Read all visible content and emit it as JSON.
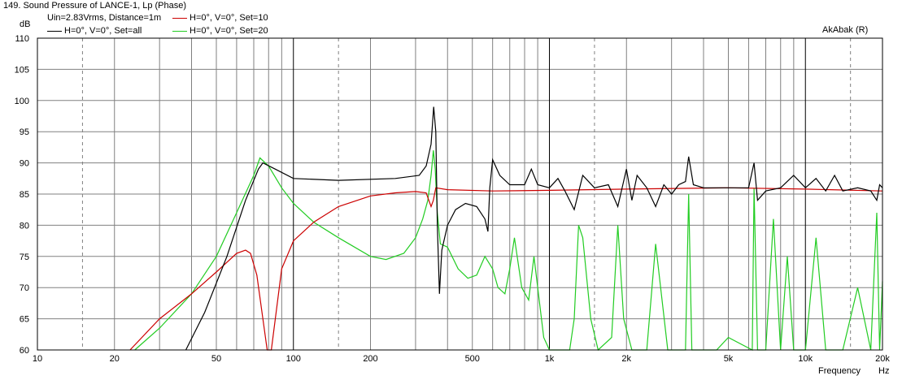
{
  "header": {
    "title": "149. Sound Pressure of LANCE-1, Lp (Phase)",
    "y_unit": "dB",
    "conditions": "Uin=2.83Vrms, Distance=1m",
    "brand": "AkAbak (R)"
  },
  "legend": [
    {
      "label": "H=0°, V=0°, Set=10",
      "color": "#cc0000"
    },
    {
      "label": "H=0°, V=0°, Set=all",
      "color": "#000000"
    },
    {
      "label": "H=0°, V=0°, Set=20",
      "color": "#22cc22"
    }
  ],
  "chart_data": {
    "type": "line",
    "title": "149. Sound Pressure of LANCE-1, Lp (Phase)",
    "xlabel": "Frequency",
    "xunit": "Hz",
    "ylabel": "dB",
    "xscale": "log",
    "xlim": [
      10,
      20000
    ],
    "ylim": [
      60,
      110
    ],
    "grid": true,
    "x_ticks": [
      {
        "value": 10,
        "label": "10"
      },
      {
        "value": 20,
        "label": "20"
      },
      {
        "value": 50,
        "label": "50"
      },
      {
        "value": 100,
        "label": "100"
      },
      {
        "value": 200,
        "label": "200"
      },
      {
        "value": 500,
        "label": "500"
      },
      {
        "value": 1000,
        "label": "1k"
      },
      {
        "value": 2000,
        "label": "2k"
      },
      {
        "value": 5000,
        "label": "5k"
      },
      {
        "value": 10000,
        "label": "10k"
      },
      {
        "value": 20000,
        "label": "20k"
      }
    ],
    "y_ticks": [
      60,
      65,
      70,
      75,
      80,
      85,
      90,
      95,
      100,
      105,
      110
    ],
    "series": [
      {
        "name": "H=0°, V=0°, Set=all",
        "color": "#000000",
        "points": [
          [
            38,
            60
          ],
          [
            45,
            66
          ],
          [
            55,
            75
          ],
          [
            65,
            84
          ],
          [
            73,
            89
          ],
          [
            76,
            90
          ],
          [
            85,
            89
          ],
          [
            100,
            87.5
          ],
          [
            150,
            87.2
          ],
          [
            250,
            87.5
          ],
          [
            310,
            88
          ],
          [
            330,
            89.5
          ],
          [
            345,
            93
          ],
          [
            353,
            99
          ],
          [
            360,
            95
          ],
          [
            365,
            80
          ],
          [
            372,
            69
          ],
          [
            380,
            76
          ],
          [
            400,
            80
          ],
          [
            430,
            82.5
          ],
          [
            470,
            83.5
          ],
          [
            520,
            83
          ],
          [
            560,
            81
          ],
          [
            575,
            79
          ],
          [
            585,
            86
          ],
          [
            600,
            90.5
          ],
          [
            640,
            88
          ],
          [
            700,
            86.5
          ],
          [
            800,
            86.5
          ],
          [
            850,
            89
          ],
          [
            900,
            86.5
          ],
          [
            1000,
            86
          ],
          [
            1080,
            87.5
          ],
          [
            1150,
            85.5
          ],
          [
            1250,
            82.5
          ],
          [
            1350,
            88
          ],
          [
            1500,
            86
          ],
          [
            1700,
            86.5
          ],
          [
            1850,
            83
          ],
          [
            2000,
            89
          ],
          [
            2100,
            84
          ],
          [
            2200,
            88
          ],
          [
            2400,
            86
          ],
          [
            2600,
            83
          ],
          [
            2800,
            86.5
          ],
          [
            3000,
            85
          ],
          [
            3200,
            86.5
          ],
          [
            3400,
            87
          ],
          [
            3500,
            91
          ],
          [
            3650,
            86.5
          ],
          [
            4000,
            86
          ],
          [
            5000,
            86
          ],
          [
            6000,
            86
          ],
          [
            6300,
            90
          ],
          [
            6500,
            84
          ],
          [
            7000,
            85.5
          ],
          [
            8000,
            86
          ],
          [
            9000,
            88
          ],
          [
            10000,
            86
          ],
          [
            11000,
            87.5
          ],
          [
            12000,
            85.5
          ],
          [
            13000,
            88
          ],
          [
            14000,
            85.5
          ],
          [
            16000,
            86
          ],
          [
            18000,
            85.5
          ],
          [
            19000,
            84
          ],
          [
            19500,
            86.5
          ],
          [
            20000,
            86
          ]
        ]
      },
      {
        "name": "H=0°, V=0°, Set=10",
        "color": "#cc0000",
        "points": [
          [
            23,
            60
          ],
          [
            30,
            65
          ],
          [
            40,
            69
          ],
          [
            50,
            72.5
          ],
          [
            60,
            75.5
          ],
          [
            65,
            76
          ],
          [
            68,
            75.5
          ],
          [
            72,
            72
          ],
          [
            76,
            65
          ],
          [
            79,
            60
          ],
          [
            82,
            60
          ],
          [
            85,
            65
          ],
          [
            90,
            73
          ],
          [
            100,
            77.5
          ],
          [
            120,
            80.5
          ],
          [
            150,
            83
          ],
          [
            200,
            84.7
          ],
          [
            250,
            85.2
          ],
          [
            300,
            85.4
          ],
          [
            330,
            85.2
          ],
          [
            345,
            83
          ],
          [
            352,
            84
          ],
          [
            360,
            86
          ],
          [
            400,
            85.7
          ],
          [
            600,
            85.5
          ],
          [
            1000,
            85.6
          ],
          [
            2000,
            85.8
          ],
          [
            5000,
            86
          ],
          [
            10000,
            85.8
          ],
          [
            20000,
            85.5
          ]
        ]
      },
      {
        "name": "H=0°, V=0°, Set=20",
        "color": "#22cc22",
        "points": [
          [
            24,
            60
          ],
          [
            30,
            63.5
          ],
          [
            40,
            69
          ],
          [
            50,
            75
          ],
          [
            60,
            82
          ],
          [
            70,
            88
          ],
          [
            74,
            90.8
          ],
          [
            80,
            89.5
          ],
          [
            90,
            86
          ],
          [
            100,
            83.5
          ],
          [
            120,
            80.5
          ],
          [
            150,
            78
          ],
          [
            200,
            75
          ],
          [
            230,
            74.5
          ],
          [
            270,
            75.5
          ],
          [
            300,
            78
          ],
          [
            320,
            81
          ],
          [
            335,
            84
          ],
          [
            345,
            88
          ],
          [
            352,
            92
          ],
          [
            358,
            89
          ],
          [
            365,
            82
          ],
          [
            375,
            77
          ],
          [
            400,
            76.5
          ],
          [
            440,
            73
          ],
          [
            480,
            71.5
          ],
          [
            520,
            72
          ],
          [
            560,
            75
          ],
          [
            600,
            73
          ],
          [
            630,
            70
          ],
          [
            670,
            69
          ],
          [
            700,
            73
          ],
          [
            730,
            78
          ],
          [
            780,
            70
          ],
          [
            830,
            68
          ],
          [
            870,
            75
          ],
          [
            900,
            70
          ],
          [
            950,
            62
          ],
          [
            1000,
            60
          ],
          [
            1200,
            60
          ],
          [
            1250,
            65
          ],
          [
            1300,
            80
          ],
          [
            1350,
            78
          ],
          [
            1450,
            65
          ],
          [
            1550,
            60
          ],
          [
            1750,
            62
          ],
          [
            1850,
            80
          ],
          [
            1950,
            65
          ],
          [
            2100,
            60
          ],
          [
            2400,
            60
          ],
          [
            2600,
            77
          ],
          [
            2900,
            60
          ],
          [
            3400,
            60
          ],
          [
            3500,
            85
          ],
          [
            3600,
            60
          ],
          [
            4500,
            60
          ],
          [
            5000,
            62
          ],
          [
            6200,
            60
          ],
          [
            6300,
            86
          ],
          [
            6500,
            60
          ],
          [
            7000,
            60
          ],
          [
            7500,
            81
          ],
          [
            8000,
            60
          ],
          [
            8500,
            75
          ],
          [
            9000,
            60
          ],
          [
            10000,
            60
          ],
          [
            11000,
            78
          ],
          [
            12000,
            60
          ],
          [
            14000,
            60
          ],
          [
            16000,
            70
          ],
          [
            18000,
            60
          ],
          [
            19000,
            82
          ],
          [
            19500,
            60
          ],
          [
            20000,
            71
          ]
        ]
      }
    ],
    "annotations": [
      "AkAbak (R)",
      "Uin=2.83Vrms, Distance=1m"
    ]
  }
}
